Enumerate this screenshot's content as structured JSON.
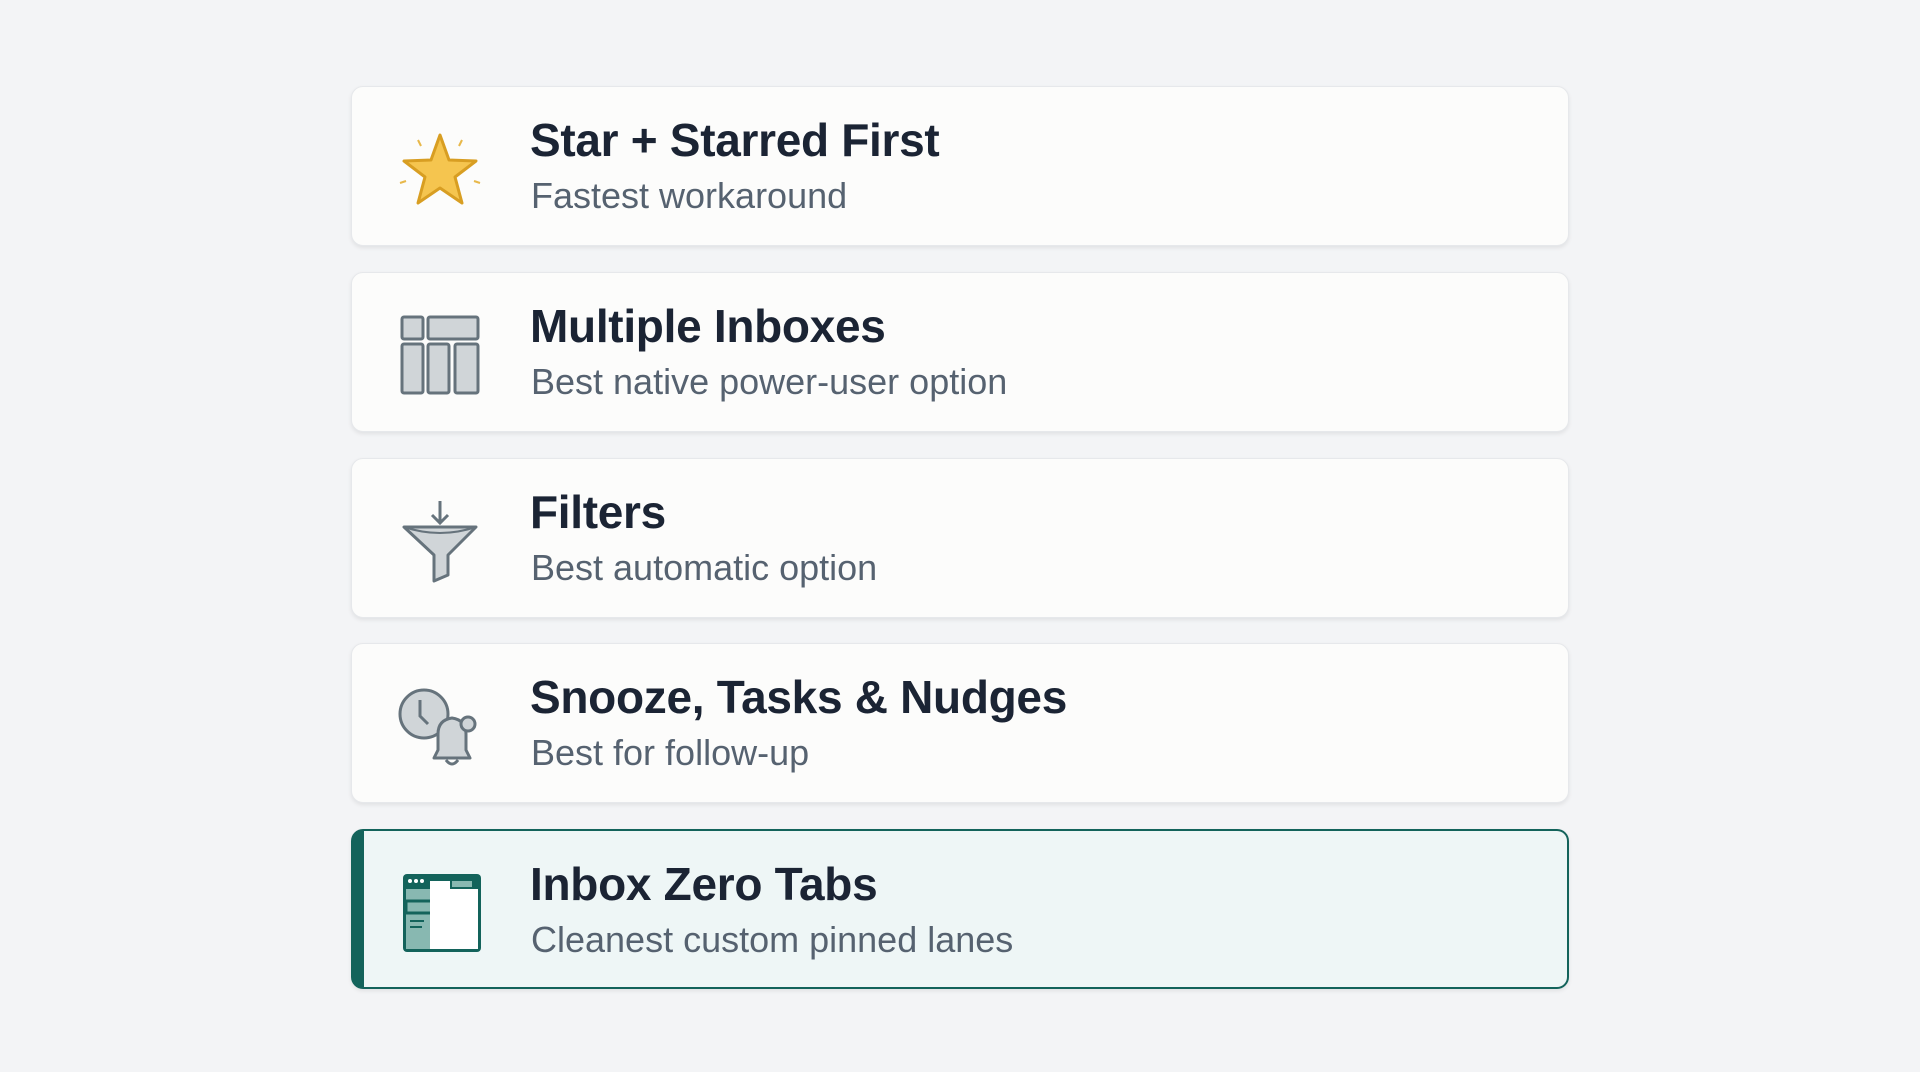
{
  "accent_color": "#13635b",
  "options": [
    {
      "title": "Star + Starred First",
      "subtitle": "Fastest workaround",
      "icon": "star-icon"
    },
    {
      "title": "Multiple Inboxes",
      "subtitle": "Best native power-user option",
      "icon": "multiple-inboxes-layout-icon"
    },
    {
      "title": "Filters",
      "subtitle": "Best automatic option",
      "icon": "funnel-filter-icon"
    },
    {
      "title": "Snooze, Tasks & Nudges",
      "subtitle": "Best for follow-up",
      "icon": "clock-bell-icon"
    },
    {
      "title": "Inbox Zero Tabs",
      "subtitle": "Cleanest custom pinned lanes",
      "icon": "browser-tabs-icon",
      "selected": true
    }
  ]
}
